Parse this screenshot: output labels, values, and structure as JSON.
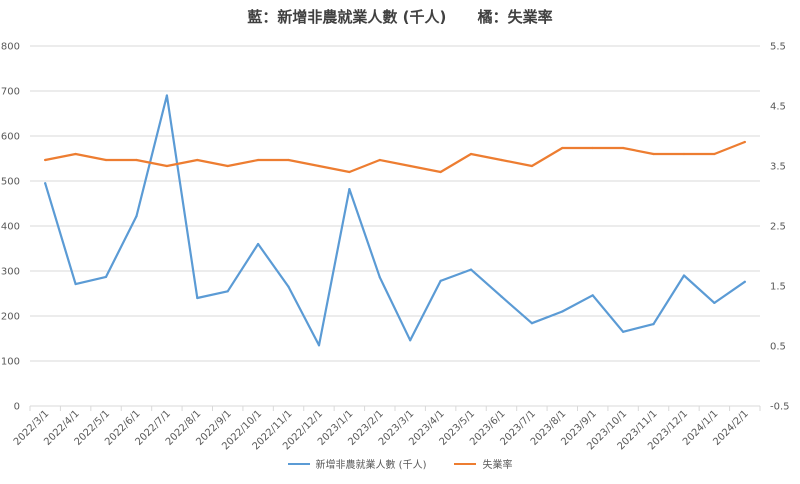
{
  "chart_data": {
    "type": "line",
    "title": "藍：新增非農就業人數 (千人)      橘：失業率",
    "categories": [
      "2022/3/1",
      "2022/4/1",
      "2022/5/1",
      "2022/6/1",
      "2022/7/1",
      "2022/8/1",
      "2022/9/1",
      "2022/10/1",
      "2022/11/1",
      "2022/12/1",
      "2023/1/1",
      "2023/2/1",
      "2023/3/1",
      "2023/4/1",
      "2023/5/1",
      "2023/6/1",
      "2023/7/1",
      "2023/8/1",
      "2023/9/1",
      "2023/10/1",
      "2023/11/1",
      "2023/12/1",
      "2024/1/1",
      "2024/2/1"
    ],
    "series": [
      {
        "name": "新增非農就業人數 (千人)",
        "axis": "left",
        "color": "#5B9BD5",
        "values": [
          495,
          271,
          287,
          422,
          690,
          240,
          255,
          360,
          265,
          135,
          482,
          286,
          146,
          278,
          303,
          243,
          184,
          210,
          246,
          165,
          182,
          290,
          229,
          276
        ]
      },
      {
        "name": "失業率",
        "axis": "right",
        "color": "#ED7D31",
        "values": [
          3.6,
          3.7,
          3.6,
          3.6,
          3.5,
          3.6,
          3.5,
          3.6,
          3.6,
          3.5,
          3.4,
          3.6,
          3.5,
          3.4,
          3.7,
          3.6,
          3.5,
          3.8,
          3.8,
          3.8,
          3.7,
          3.7,
          3.7,
          3.9
        ]
      }
    ],
    "y_left": {
      "lim": [
        0,
        800
      ],
      "ticks": [
        "0",
        "100",
        "200",
        "300",
        "400",
        "500",
        "600",
        "700",
        "800"
      ]
    },
    "y_right": {
      "lim": [
        -0.5,
        5.5
      ],
      "ticks": [
        "-0.5",
        "0.5",
        "1.5",
        "2.5",
        "3.5",
        "4.5",
        "5.5"
      ]
    },
    "grid": true,
    "legend_position": "bottom"
  }
}
